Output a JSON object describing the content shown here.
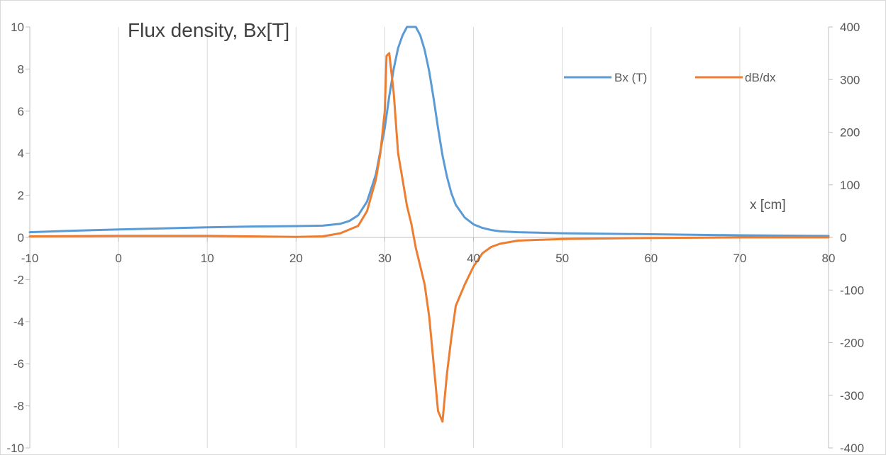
{
  "chart_data": {
    "type": "line",
    "title": "Flux density, Bx[T]",
    "xlabel": "x [cm]",
    "ylabel": "",
    "y2label": "",
    "xlim": [
      -10,
      80
    ],
    "ylim": [
      -10,
      10
    ],
    "y2lim": [
      -400,
      400
    ],
    "x_ticks": [
      "-10",
      "0",
      "10",
      "20",
      "30",
      "40",
      "50",
      "60",
      "70",
      "80"
    ],
    "y_ticks": [
      "10",
      "8",
      "6",
      "4",
      "2",
      "0",
      "-2",
      "-4",
      "-6",
      "-8",
      "-10"
    ],
    "y2_ticks": [
      "400",
      "300",
      "200",
      "100",
      "0",
      "-100",
      "-200",
      "-300",
      "-400"
    ],
    "grid": "vertical gridlines only",
    "legend_position": "top-right",
    "series": [
      {
        "name": "Bx (T)",
        "axis": "left",
        "color": "#5B9BD5",
        "x": [
          -10,
          -5,
          0,
          5,
          10,
          15,
          20,
          23,
          25,
          26,
          27,
          28,
          29,
          30,
          30.5,
          31,
          31.5,
          32,
          32.5,
          33,
          33.5,
          34,
          34.5,
          35,
          35.5,
          36,
          36.5,
          37,
          37.5,
          38,
          39,
          40,
          41,
          42,
          43,
          45,
          50,
          60,
          70,
          80
        ],
        "y": [
          0.25,
          0.32,
          0.38,
          0.43,
          0.48,
          0.52,
          0.54,
          0.56,
          0.65,
          0.78,
          1.05,
          1.7,
          3.0,
          5.2,
          6.7,
          8.0,
          9.0,
          9.6,
          10.0,
          10.2,
          10.0,
          9.6,
          8.9,
          7.9,
          6.6,
          5.2,
          3.9,
          2.9,
          2.1,
          1.55,
          0.95,
          0.62,
          0.45,
          0.35,
          0.29,
          0.25,
          0.2,
          0.15,
          0.1,
          0.07
        ]
      },
      {
        "name": "dB/dx",
        "axis": "right",
        "color": "#ED7D31",
        "x": [
          -10,
          0,
          10,
          20,
          23,
          25,
          26,
          27,
          28,
          29,
          29.5,
          30,
          30.2,
          30.5,
          31,
          31.5,
          32,
          32.5,
          33,
          33.5,
          34,
          34.5,
          35,
          35.5,
          36,
          36.5,
          37,
          37.5,
          38,
          39,
          40,
          41,
          42,
          43,
          45,
          50,
          60,
          70,
          80
        ],
        "y": [
          2,
          3,
          3,
          1,
          2,
          8,
          15,
          22,
          50,
          110,
          160,
          240,
          345,
          350,
          275,
          160,
          110,
          60,
          25,
          -20,
          -55,
          -90,
          -150,
          -240,
          -330,
          -350,
          -260,
          -190,
          -130,
          -90,
          -55,
          -30,
          -18,
          -12,
          -6,
          -3,
          -1,
          0,
          0
        ]
      }
    ]
  }
}
